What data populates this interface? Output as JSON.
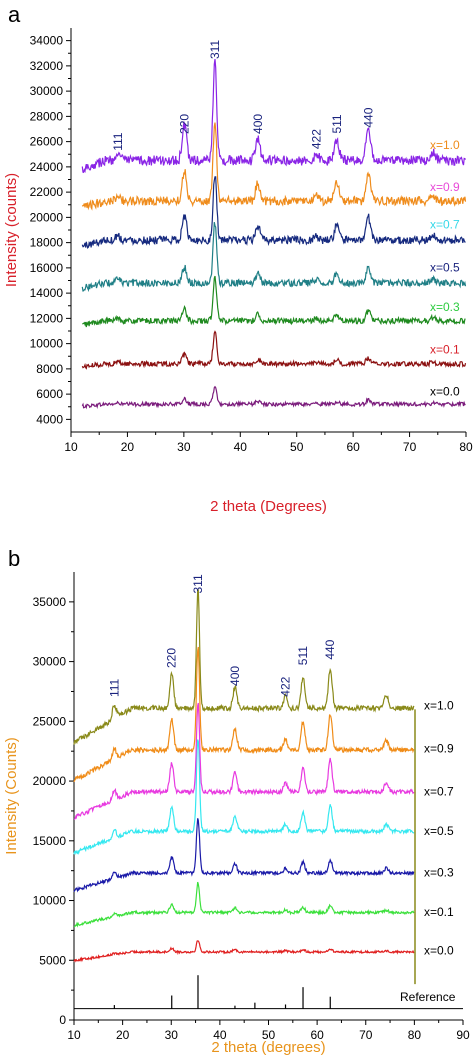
{
  "chart_data": [
    {
      "type": "line",
      "panel_label": "a",
      "xlabel": "2 theta (Degrees)",
      "ylabel": "Intensity (counts)",
      "xlim": [
        10,
        80
      ],
      "ylim": [
        3000,
        35000
      ],
      "xticks": [
        10,
        20,
        30,
        40,
        50,
        60,
        70,
        80
      ],
      "yticks": [
        4000,
        6000,
        8000,
        10000,
        12000,
        14000,
        16000,
        18000,
        20000,
        22000,
        24000,
        26000,
        28000,
        30000,
        32000,
        34000
      ],
      "colors": {
        "xlabel": "#d8202a",
        "ylabel": "#d8202a",
        "peaks": "#1a237e"
      },
      "peaks": [
        {
          "label": "111",
          "x": 18.3,
          "y": 26000
        },
        {
          "label": "220",
          "x": 30.1,
          "y": 27400
        },
        {
          "label": "311",
          "x": 35.5,
          "y": 33300
        },
        {
          "label": "400",
          "x": 43.1,
          "y": 27400
        },
        {
          "label": "422",
          "x": 53.5,
          "y": 26200
        },
        {
          "label": "511",
          "x": 57.1,
          "y": 27400
        },
        {
          "label": "440",
          "x": 62.7,
          "y": 27900
        }
      ],
      "series": [
        {
          "name": "x=0.0",
          "color": "#7b1c7c",
          "label_color": "#000000",
          "baseline": 5200,
          "amplitudes": [
            80,
            400,
            1400,
            250,
            60,
            200,
            320
          ],
          "label_y": 5900
        },
        {
          "name": "x=0.1",
          "color": "#8b1010",
          "label_color": "#d8202a",
          "baseline": 8400,
          "amplitudes": [
            150,
            700,
            2500,
            350,
            100,
            300,
            450
          ],
          "label_y": 9200
        },
        {
          "name": "x=0.3",
          "color": "#1f8a1f",
          "label_color": "#2ecc40",
          "baseline": 11800,
          "amplitudes": [
            250,
            900,
            3400,
            550,
            200,
            550,
            800
          ],
          "label_y": 12600
        },
        {
          "name": "x=0.5",
          "color": "#1f7f86",
          "label_color": "#1a237e",
          "baseline": 14800,
          "amplitudes": [
            300,
            1300,
            4800,
            750,
            280,
            800,
            1200
          ],
          "label_y": 15700
        },
        {
          "name": "x=0.7",
          "color": "#162a7f",
          "label_color": "#35d8e8",
          "baseline": 18200,
          "amplitudes": [
            400,
            1900,
            5200,
            1100,
            380,
            1150,
            1800
          ],
          "label_y": 19100
        },
        {
          "name": "x=0.9",
          "color": "#ef8c1c",
          "label_color": "#e84ad8",
          "baseline": 21300,
          "amplitudes": [
            500,
            2400,
            6300,
            1400,
            480,
            1400,
            2200
          ],
          "label_y": 22100
        },
        {
          "name": "x=1.0",
          "color": "#8a25e6",
          "label_color": "#ef8c1c",
          "baseline": 24500,
          "amplitudes": [
            700,
            2800,
            8000,
            1800,
            600,
            1700,
            2600
          ],
          "label_y": 25400
        }
      ]
    },
    {
      "type": "line",
      "panel_label": "b",
      "xlabel": "2 theta (degrees)",
      "ylabel": "Intensity (Counts)",
      "xlim": [
        10,
        90
      ],
      "ylim": [
        0,
        37500
      ],
      "xticks": [
        10,
        20,
        30,
        40,
        50,
        60,
        70,
        80,
        90
      ],
      "yticks": [
        0,
        5000,
        10000,
        15000,
        20000,
        25000,
        30000,
        35000
      ],
      "colors": {
        "xlabel": "#e8941c",
        "ylabel": "#e8941c",
        "peaks": "#1a237e"
      },
      "peaks": [
        {
          "label": "111",
          "x": 18.3,
          "y": 27800
        },
        {
          "label": "220",
          "x": 30.1,
          "y": 30300
        },
        {
          "label": "311",
          "x": 35.5,
          "y": 36500
        },
        {
          "label": "400",
          "x": 43.1,
          "y": 28800
        },
        {
          "label": "422",
          "x": 53.5,
          "y": 27900
        },
        {
          "label": "511",
          "x": 57.1,
          "y": 30500
        },
        {
          "label": "440",
          "x": 62.7,
          "y": 31000
        }
      ],
      "series": [
        {
          "name": "x=0.0",
          "color": "#e02020",
          "label_color": "#000000",
          "baseline": 5700,
          "amplitudes": [
            100,
            300,
            1000,
            200,
            100,
            200,
            250
          ],
          "label_y": 5500
        },
        {
          "name": "x=0.1",
          "color": "#3ce03c",
          "label_color": "#000000",
          "baseline": 9000,
          "amplitudes": [
            200,
            700,
            2500,
            400,
            200,
            450,
            600
          ],
          "label_y": 8700
        },
        {
          "name": "x=0.3",
          "color": "#1a1aa8",
          "label_color": "#000000",
          "baseline": 12300,
          "amplitudes": [
            450,
            1300,
            4600,
            800,
            400,
            900,
            1100
          ],
          "label_y": 12000
        },
        {
          "name": "x=0.5",
          "color": "#35e8f0",
          "label_color": "#000000",
          "baseline": 15800,
          "amplitudes": [
            650,
            2000,
            7800,
            1300,
            600,
            1600,
            2200
          ],
          "label_y": 15500
        },
        {
          "name": "x=0.7",
          "color": "#e83ae0",
          "label_color": "#000000",
          "baseline": 19100,
          "amplitudes": [
            800,
            2400,
            7400,
            1600,
            700,
            2000,
            2700
          ],
          "label_y": 18800
        },
        {
          "name": "x=0.9",
          "color": "#f08c18",
          "label_color": "#000000",
          "baseline": 22600,
          "amplitudes": [
            900,
            2600,
            8600,
            1800,
            850,
            2400,
            3000
          ],
          "label_y": 22400
        },
        {
          "name": "x=1.0",
          "color": "#8a8a1a",
          "label_color": "#000000",
          "baseline": 26100,
          "amplitudes": [
            1200,
            2900,
            9900,
            1800,
            1000,
            2600,
            3300
          ],
          "label_y": 26000
        }
      ],
      "reference": {
        "label": "Reference",
        "sticks": [
          {
            "x": 18.3,
            "h": 300
          },
          {
            "x": 30.1,
            "h": 1100
          },
          {
            "x": 35.5,
            "h": 2800
          },
          {
            "x": 43.1,
            "h": 250
          },
          {
            "x": 47.2,
            "h": 500
          },
          {
            "x": 53.5,
            "h": 350
          },
          {
            "x": 57.1,
            "h": 1800
          },
          {
            "x": 62.7,
            "h": 1000
          }
        ]
      }
    }
  ]
}
